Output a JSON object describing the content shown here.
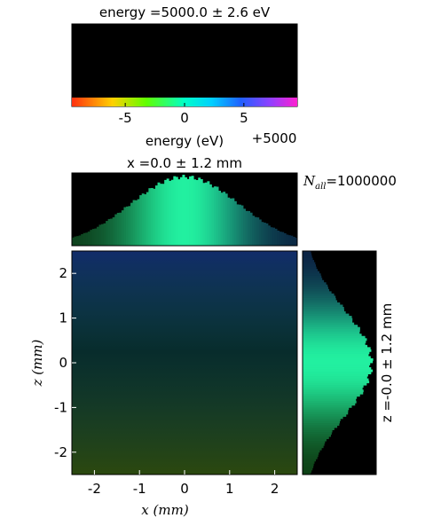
{
  "chart_data": [
    {
      "type": "histogram",
      "name": "energy-histogram",
      "title": "energy =5000.0 ± 2.6 eV",
      "xlabel": "energy (eV)",
      "x_offset_label": "+5000",
      "xlim": [
        -9.5,
        9.5
      ],
      "xticks": [
        "-5",
        "0",
        "5"
      ],
      "xtick_values": [
        -5,
        0,
        5
      ],
      "distribution": {
        "shape": "gaussian",
        "center": 0.0,
        "sigma": 2.6
      },
      "colormap_bar": "rainbow (red → yellow → green → cyan → blue → magenta)",
      "background": "#000000"
    },
    {
      "type": "histogram",
      "name": "x-histogram",
      "title": "x =0.0 ± 1.2 mm",
      "xlim": [
        -2.5,
        2.5
      ],
      "distribution": {
        "shape": "gaussian",
        "center": 0.0,
        "sigma": 1.2
      },
      "background": "#000000"
    },
    {
      "type": "heatmap",
      "name": "xz-map",
      "xlabel": "x (mm)",
      "ylabel": "z (mm)",
      "xlim": [
        -2.5,
        2.5
      ],
      "ylim": [
        -2.5,
        2.5
      ],
      "xticks": [
        "-2",
        "-1",
        "0",
        "1",
        "2"
      ],
      "xtick_values": [
        -2,
        -1,
        0,
        1,
        2
      ],
      "yticks": [
        "-2",
        "-1",
        "0",
        "1",
        "2"
      ],
      "ytick_values": [
        -2,
        -1,
        0,
        1,
        2
      ],
      "distribution": {
        "shape": "2D gaussian",
        "center": [
          0.0,
          0.0
        ],
        "sigma": [
          1.2,
          1.2
        ]
      },
      "color_gradient": "blue (high z) → cyan (center) → green (low z)",
      "background": "#000000"
    },
    {
      "type": "histogram",
      "orientation": "vertical",
      "name": "z-histogram",
      "title": "z =-0.0 ± 1.2 mm",
      "ylim": [
        -2.5,
        2.5
      ],
      "distribution": {
        "shape": "gaussian",
        "center": 0.0,
        "sigma": 1.2
      },
      "background": "#000000"
    }
  ],
  "annotations": {
    "n_all_label": "N",
    "n_all_sub": "all",
    "n_all_value": "=1000000"
  },
  "colors": {
    "panel_bg": "#000000",
    "hist_fill_center": "#22f0a0",
    "hist_fill_edge": "#0b2a20"
  }
}
